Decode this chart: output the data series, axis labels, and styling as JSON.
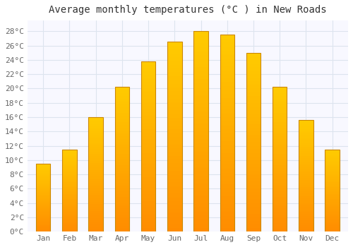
{
  "title": "Average monthly temperatures (°C ) in New Roads",
  "months": [
    "Jan",
    "Feb",
    "Mar",
    "Apr",
    "May",
    "Jun",
    "Jul",
    "Aug",
    "Sep",
    "Oct",
    "Nov",
    "Dec"
  ],
  "values": [
    9.5,
    11.5,
    16.0,
    20.2,
    23.8,
    26.5,
    28.0,
    27.5,
    25.0,
    20.2,
    15.6,
    11.5
  ],
  "bar_color_top": "#FFB800",
  "bar_color_bottom": "#FFA500",
  "bar_edge_color": "#CC8800",
  "ylim": [
    0,
    29.5
  ],
  "yticks": [
    0,
    2,
    4,
    6,
    8,
    10,
    12,
    14,
    16,
    18,
    20,
    22,
    24,
    26,
    28
  ],
  "ytick_labels": [
    "0°C",
    "2°C",
    "4°C",
    "6°C",
    "8°C",
    "10°C",
    "12°C",
    "14°C",
    "16°C",
    "18°C",
    "20°C",
    "22°C",
    "24°C",
    "26°C",
    "28°C"
  ],
  "background_color": "#ffffff",
  "plot_bg_color": "#f8f8ff",
  "grid_color": "#dde4ee",
  "title_fontsize": 10,
  "tick_fontsize": 8,
  "font_family": "monospace",
  "bar_width": 0.55
}
